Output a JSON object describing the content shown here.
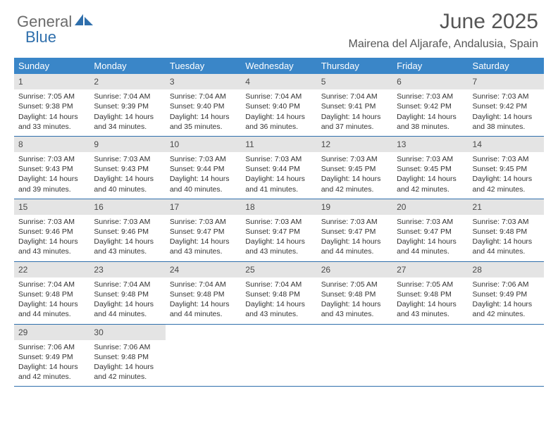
{
  "logo": {
    "text1": "General",
    "text2": "Blue"
  },
  "title": "June 2025",
  "location": "Mairena del Aljarafe, Andalusia, Spain",
  "colors": {
    "header_bg": "#3a86c8",
    "header_text": "#ffffff",
    "daynum_bg": "#e4e4e4",
    "border": "#2f6fac",
    "body_text": "#333333",
    "title_text": "#555555",
    "logo_gray": "#6b6b6b",
    "logo_blue": "#2f6fac"
  },
  "day_headers": [
    "Sunday",
    "Monday",
    "Tuesday",
    "Wednesday",
    "Thursday",
    "Friday",
    "Saturday"
  ],
  "days": [
    {
      "n": "1",
      "sr": "7:05 AM",
      "ss": "9:38 PM",
      "dl": "14 hours and 33 minutes."
    },
    {
      "n": "2",
      "sr": "7:04 AM",
      "ss": "9:39 PM",
      "dl": "14 hours and 34 minutes."
    },
    {
      "n": "3",
      "sr": "7:04 AM",
      "ss": "9:40 PM",
      "dl": "14 hours and 35 minutes."
    },
    {
      "n": "4",
      "sr": "7:04 AM",
      "ss": "9:40 PM",
      "dl": "14 hours and 36 minutes."
    },
    {
      "n": "5",
      "sr": "7:04 AM",
      "ss": "9:41 PM",
      "dl": "14 hours and 37 minutes."
    },
    {
      "n": "6",
      "sr": "7:03 AM",
      "ss": "9:42 PM",
      "dl": "14 hours and 38 minutes."
    },
    {
      "n": "7",
      "sr": "7:03 AM",
      "ss": "9:42 PM",
      "dl": "14 hours and 38 minutes."
    },
    {
      "n": "8",
      "sr": "7:03 AM",
      "ss": "9:43 PM",
      "dl": "14 hours and 39 minutes."
    },
    {
      "n": "9",
      "sr": "7:03 AM",
      "ss": "9:43 PM",
      "dl": "14 hours and 40 minutes."
    },
    {
      "n": "10",
      "sr": "7:03 AM",
      "ss": "9:44 PM",
      "dl": "14 hours and 40 minutes."
    },
    {
      "n": "11",
      "sr": "7:03 AM",
      "ss": "9:44 PM",
      "dl": "14 hours and 41 minutes."
    },
    {
      "n": "12",
      "sr": "7:03 AM",
      "ss": "9:45 PM",
      "dl": "14 hours and 42 minutes."
    },
    {
      "n": "13",
      "sr": "7:03 AM",
      "ss": "9:45 PM",
      "dl": "14 hours and 42 minutes."
    },
    {
      "n": "14",
      "sr": "7:03 AM",
      "ss": "9:45 PM",
      "dl": "14 hours and 42 minutes."
    },
    {
      "n": "15",
      "sr": "7:03 AM",
      "ss": "9:46 PM",
      "dl": "14 hours and 43 minutes."
    },
    {
      "n": "16",
      "sr": "7:03 AM",
      "ss": "9:46 PM",
      "dl": "14 hours and 43 minutes."
    },
    {
      "n": "17",
      "sr": "7:03 AM",
      "ss": "9:47 PM",
      "dl": "14 hours and 43 minutes."
    },
    {
      "n": "18",
      "sr": "7:03 AM",
      "ss": "9:47 PM",
      "dl": "14 hours and 43 minutes."
    },
    {
      "n": "19",
      "sr": "7:03 AM",
      "ss": "9:47 PM",
      "dl": "14 hours and 44 minutes."
    },
    {
      "n": "20",
      "sr": "7:03 AM",
      "ss": "9:47 PM",
      "dl": "14 hours and 44 minutes."
    },
    {
      "n": "21",
      "sr": "7:03 AM",
      "ss": "9:48 PM",
      "dl": "14 hours and 44 minutes."
    },
    {
      "n": "22",
      "sr": "7:04 AM",
      "ss": "9:48 PM",
      "dl": "14 hours and 44 minutes."
    },
    {
      "n": "23",
      "sr": "7:04 AM",
      "ss": "9:48 PM",
      "dl": "14 hours and 44 minutes."
    },
    {
      "n": "24",
      "sr": "7:04 AM",
      "ss": "9:48 PM",
      "dl": "14 hours and 44 minutes."
    },
    {
      "n": "25",
      "sr": "7:04 AM",
      "ss": "9:48 PM",
      "dl": "14 hours and 43 minutes."
    },
    {
      "n": "26",
      "sr": "7:05 AM",
      "ss": "9:48 PM",
      "dl": "14 hours and 43 minutes."
    },
    {
      "n": "27",
      "sr": "7:05 AM",
      "ss": "9:48 PM",
      "dl": "14 hours and 43 minutes."
    },
    {
      "n": "28",
      "sr": "7:06 AM",
      "ss": "9:49 PM",
      "dl": "14 hours and 42 minutes."
    },
    {
      "n": "29",
      "sr": "7:06 AM",
      "ss": "9:49 PM",
      "dl": "14 hours and 42 minutes."
    },
    {
      "n": "30",
      "sr": "7:06 AM",
      "ss": "9:48 PM",
      "dl": "14 hours and 42 minutes."
    }
  ],
  "labels": {
    "sunrise": "Sunrise:",
    "sunset": "Sunset:",
    "daylight": "Daylight:"
  }
}
